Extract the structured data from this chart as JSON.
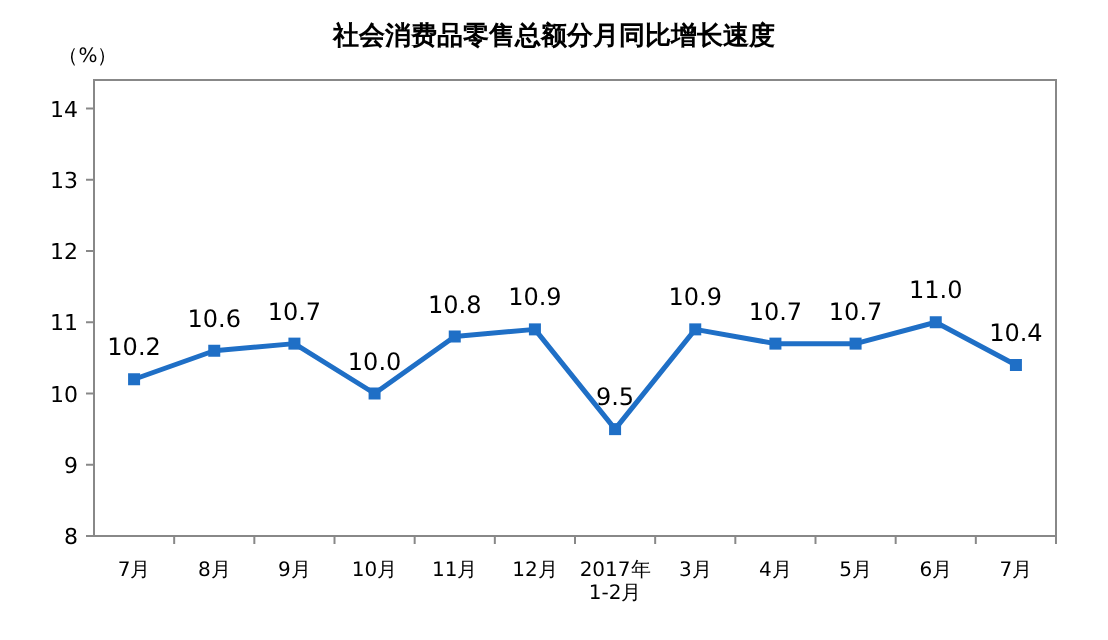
{
  "chart_data": {
    "type": "line",
    "title": "社会消费品零售总额分月同比增长速度",
    "ylabel": "（%）",
    "categories": [
      "7月",
      "8月",
      "9月",
      "10月",
      "11月",
      "12月",
      "2017年\n1-2月",
      "3月",
      "4月",
      "5月",
      "6月",
      "7月"
    ],
    "values": [
      10.2,
      10.6,
      10.7,
      10.0,
      10.8,
      10.9,
      9.5,
      10.9,
      10.7,
      10.7,
      11.0,
      10.4
    ],
    "value_labels": [
      "10.2",
      "10.6",
      "10.7",
      "10.0",
      "10.8",
      "10.9",
      "9.5",
      "10.9",
      "10.7",
      "10.7",
      "11.0",
      "10.4"
    ],
    "color": "#1f6fc6",
    "marker": "square",
    "ylim": [
      8,
      14.4
    ],
    "yticks": [
      8,
      9,
      10,
      11,
      12,
      13,
      14
    ]
  }
}
